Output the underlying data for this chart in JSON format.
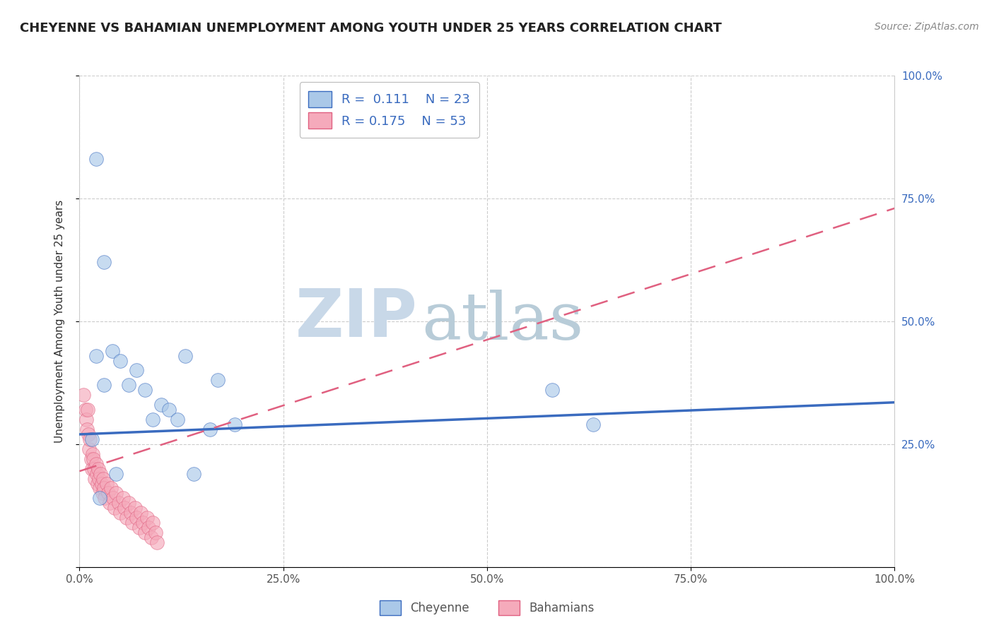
{
  "title": "CHEYENNE VS BAHAMIAN UNEMPLOYMENT AMONG YOUTH UNDER 25 YEARS CORRELATION CHART",
  "source": "Source: ZipAtlas.com",
  "ylabel": "Unemployment Among Youth under 25 years",
  "xlim": [
    0,
    1.0
  ],
  "ylim": [
    0,
    1.0
  ],
  "xticks": [
    0.0,
    0.25,
    0.5,
    0.75,
    1.0
  ],
  "xticklabels": [
    "0.0%",
    "25.0%",
    "50.0%",
    "75.0%",
    "100.0%"
  ],
  "yticks": [
    0.0,
    0.25,
    0.5,
    0.75,
    1.0
  ],
  "right_yticklabels": [
    "",
    "25.0%",
    "50.0%",
    "75.0%",
    "100.0%"
  ],
  "cheyenne_R": 0.111,
  "cheyenne_N": 23,
  "bahamians_R": 0.175,
  "bahamians_N": 53,
  "cheyenne_color": "#aac8e8",
  "bahamians_color": "#f5aabb",
  "cheyenne_line_color": "#3a6bbf",
  "bahamians_line_color": "#e06080",
  "grid_color": "#cccccc",
  "watermark_zip": "ZIP",
  "watermark_atlas": "atlas",
  "watermark_color_zip": "#c8d8e8",
  "watermark_color_atlas": "#b8ccd8",
  "cheyenne_x": [
    0.02,
    0.03,
    0.04,
    0.02,
    0.03,
    0.05,
    0.06,
    0.07,
    0.08,
    0.09,
    0.1,
    0.11,
    0.12,
    0.13,
    0.14,
    0.16,
    0.17,
    0.19,
    0.58,
    0.63,
    0.015,
    0.025,
    0.045
  ],
  "cheyenne_y": [
    0.83,
    0.62,
    0.44,
    0.43,
    0.37,
    0.42,
    0.37,
    0.4,
    0.36,
    0.3,
    0.33,
    0.32,
    0.3,
    0.43,
    0.19,
    0.28,
    0.38,
    0.29,
    0.36,
    0.29,
    0.26,
    0.14,
    0.19
  ],
  "bahamians_x": [
    0.005,
    0.007,
    0.008,
    0.009,
    0.01,
    0.011,
    0.012,
    0.013,
    0.014,
    0.015,
    0.016,
    0.017,
    0.018,
    0.019,
    0.02,
    0.021,
    0.022,
    0.023,
    0.024,
    0.025,
    0.026,
    0.027,
    0.028,
    0.029,
    0.03,
    0.031,
    0.033,
    0.035,
    0.037,
    0.039,
    0.041,
    0.043,
    0.045,
    0.048,
    0.05,
    0.053,
    0.055,
    0.058,
    0.06,
    0.063,
    0.065,
    0.068,
    0.07,
    0.073,
    0.075,
    0.078,
    0.08,
    0.083,
    0.085,
    0.088,
    0.09,
    0.093,
    0.095
  ],
  "bahamians_y": [
    0.35,
    0.32,
    0.3,
    0.28,
    0.32,
    0.27,
    0.24,
    0.26,
    0.22,
    0.2,
    0.23,
    0.22,
    0.2,
    0.18,
    0.21,
    0.19,
    0.17,
    0.2,
    0.18,
    0.16,
    0.19,
    0.17,
    0.15,
    0.18,
    0.16,
    0.14,
    0.17,
    0.15,
    0.13,
    0.16,
    0.14,
    0.12,
    0.15,
    0.13,
    0.11,
    0.14,
    0.12,
    0.1,
    0.13,
    0.11,
    0.09,
    0.12,
    0.1,
    0.08,
    0.11,
    0.09,
    0.07,
    0.1,
    0.08,
    0.06,
    0.09,
    0.07,
    0.05
  ],
  "cheyenne_line_x0": 0.0,
  "cheyenne_line_y0": 0.27,
  "cheyenne_line_x1": 1.0,
  "cheyenne_line_y1": 0.335,
  "bahamians_line_x0": 0.0,
  "bahamians_line_y0": 0.195,
  "bahamians_line_x1": 1.0,
  "bahamians_line_y1": 0.73
}
